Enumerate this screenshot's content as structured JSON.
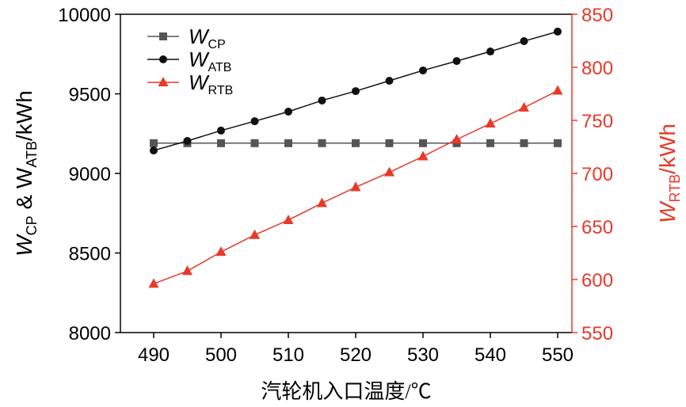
{
  "chart_data": {
    "type": "line",
    "xlabel": "汽轮机入口温度/℃",
    "ylabel_left": {
      "main": "W",
      "sub1": "CP",
      "mid": " & W",
      "sub2": "ATB",
      "tail": "/kWh"
    },
    "ylabel_right": {
      "main": "W",
      "sub": "RTB",
      "tail": "/kWh"
    },
    "x": [
      490,
      495,
      500,
      505,
      510,
      515,
      520,
      525,
      530,
      535,
      540,
      545,
      550
    ],
    "x_ticks": [
      490,
      500,
      510,
      520,
      530,
      540,
      550
    ],
    "xlim": [
      485,
      552
    ],
    "ylim_left": [
      8000,
      10000
    ],
    "ylim_right": [
      550,
      850
    ],
    "y_ticks_left": [
      8000,
      8500,
      9000,
      9500,
      10000
    ],
    "y_ticks_right": [
      550,
      600,
      650,
      700,
      750,
      800,
      850
    ],
    "right_axis_color": "#e8392a",
    "legend_placement": "top-left",
    "series": [
      {
        "name": "W",
        "sub": "CP",
        "axis": "left",
        "color": "#555555",
        "marker": "square",
        "values": [
          9190,
          9190,
          9190,
          9190,
          9190,
          9190,
          9190,
          9190,
          9190,
          9190,
          9190,
          9190,
          9190
        ]
      },
      {
        "name": "W",
        "sub": "ATB",
        "axis": "left",
        "color": "#111111",
        "marker": "circle",
        "values": [
          9144,
          9204,
          9269,
          9328,
          9388,
          9458,
          9517,
          9582,
          9647,
          9706,
          9766,
          9831,
          9891
        ]
      },
      {
        "name": "W",
        "sub": "RTB",
        "axis": "right",
        "color": "#e8392a",
        "marker": "triangle",
        "values": [
          596,
          608,
          626,
          642,
          656,
          672,
          687,
          701,
          716,
          732,
          747,
          762,
          778
        ]
      }
    ]
  }
}
